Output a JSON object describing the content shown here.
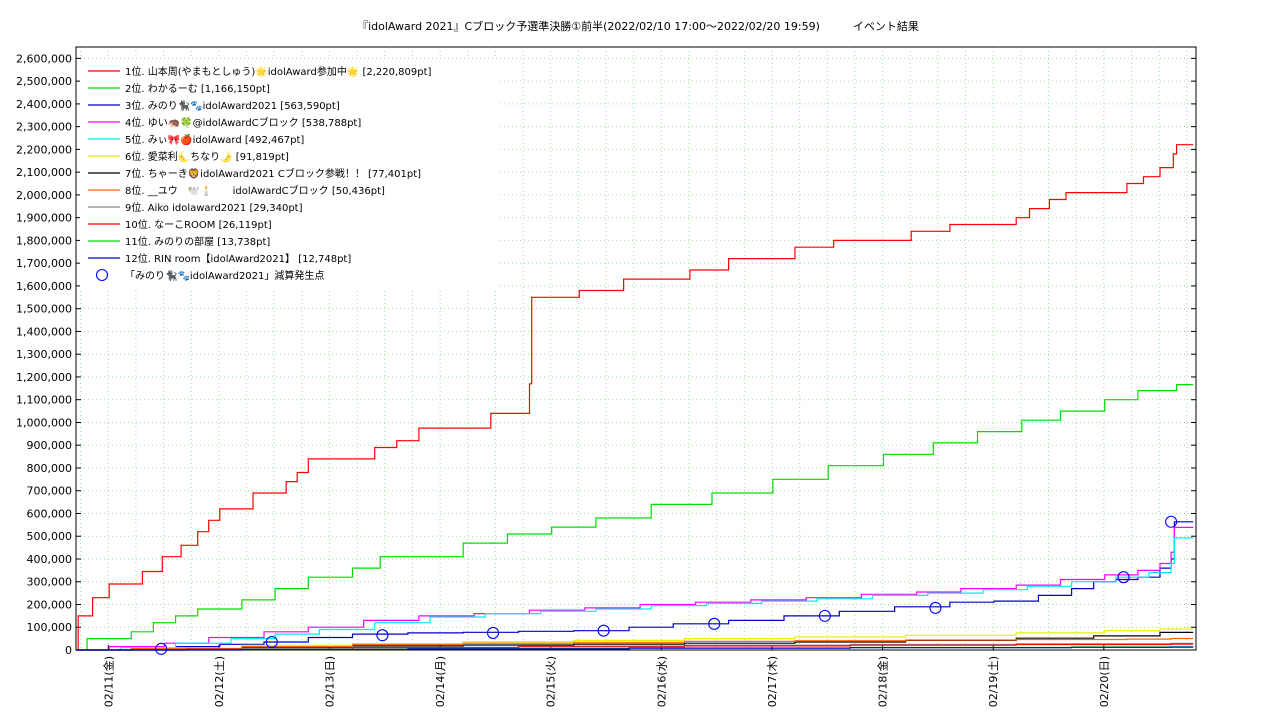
{
  "chart_data": {
    "type": "line",
    "title": "『idolAward 2021』Cブロック予選準決勝①前半(2022/02/10 17:00～2022/02/20 19:59)　　　イベント結果",
    "xlabel": "",
    "ylabel": "",
    "x_unit": "days since 2022/02/10 17:00",
    "xlim": [
      0,
      10.125
    ],
    "ylim": [
      0,
      2650000
    ],
    "y_tick_step": 100000,
    "grid": true,
    "legend_position": "top-left",
    "x_tick_labels": [
      {
        "x": 0.2917,
        "label": "02/11(金)"
      },
      {
        "x": 1.2917,
        "label": "02/12(土)"
      },
      {
        "x": 2.2917,
        "label": "02/13(日)"
      },
      {
        "x": 3.2917,
        "label": "02/14(月)"
      },
      {
        "x": 4.2917,
        "label": "02/15(火)"
      },
      {
        "x": 5.2917,
        "label": "02/16(水)"
      },
      {
        "x": 6.2917,
        "label": "02/17(木)"
      },
      {
        "x": 7.2917,
        "label": "02/18(金)"
      },
      {
        "x": 8.2917,
        "label": "02/19(土)"
      },
      {
        "x": 9.2917,
        "label": "02/20(日)"
      }
    ],
    "series": [
      {
        "name": "1位. 山本周(やまもとしゅう)🌟idolAward参加中🌟 [2,220,809pt]",
        "color": "#ff0000",
        "points": [
          [
            0,
            0
          ],
          [
            0.02,
            150000
          ],
          [
            0.15,
            230000
          ],
          [
            0.3,
            290000
          ],
          [
            0.6,
            345000
          ],
          [
            0.78,
            410000
          ],
          [
            0.95,
            460000
          ],
          [
            1.1,
            520000
          ],
          [
            1.2,
            570000
          ],
          [
            1.3,
            620000
          ],
          [
            1.6,
            690000
          ],
          [
            1.9,
            740000
          ],
          [
            2.0,
            780000
          ],
          [
            2.1,
            840000
          ],
          [
            2.7,
            890000
          ],
          [
            2.9,
            920000
          ],
          [
            3.1,
            975000
          ],
          [
            3.75,
            1040000
          ],
          [
            4.1,
            1170000
          ],
          [
            4.12,
            1550000
          ],
          [
            4.55,
            1580000
          ],
          [
            4.95,
            1630000
          ],
          [
            5.55,
            1670000
          ],
          [
            5.9,
            1720000
          ],
          [
            6.5,
            1770000
          ],
          [
            6.85,
            1800000
          ],
          [
            7.55,
            1840000
          ],
          [
            7.9,
            1870000
          ],
          [
            8.5,
            1900000
          ],
          [
            8.62,
            1940000
          ],
          [
            8.8,
            1980000
          ],
          [
            8.95,
            2010000
          ],
          [
            9.5,
            2050000
          ],
          [
            9.65,
            2080000
          ],
          [
            9.8,
            2120000
          ],
          [
            9.92,
            2180000
          ],
          [
            9.95,
            2220809
          ],
          [
            10.1,
            2220809
          ]
        ]
      },
      {
        "name": "2位. わかるーむ [1,166,150pt]",
        "color": "#00dd00",
        "points": [
          [
            0,
            0
          ],
          [
            0.1,
            50000
          ],
          [
            0.5,
            80000
          ],
          [
            0.7,
            120000
          ],
          [
            0.9,
            150000
          ],
          [
            1.1,
            180000
          ],
          [
            1.5,
            220000
          ],
          [
            1.8,
            270000
          ],
          [
            2.1,
            320000
          ],
          [
            2.5,
            360000
          ],
          [
            2.75,
            410000
          ],
          [
            3.5,
            470000
          ],
          [
            3.9,
            510000
          ],
          [
            4.3,
            540000
          ],
          [
            4.7,
            580000
          ],
          [
            5.2,
            640000
          ],
          [
            5.75,
            690000
          ],
          [
            6.3,
            750000
          ],
          [
            6.8,
            810000
          ],
          [
            7.3,
            860000
          ],
          [
            7.75,
            910000
          ],
          [
            8.15,
            960000
          ],
          [
            8.55,
            1010000
          ],
          [
            8.9,
            1050000
          ],
          [
            9.3,
            1100000
          ],
          [
            9.6,
            1140000
          ],
          [
            9.95,
            1166150
          ],
          [
            10.1,
            1166150
          ]
        ]
      },
      {
        "name": "3位. みのり🐈‍⬛🐾idolAward2021 [563,590pt]",
        "color": "#0000cc",
        "points": [
          [
            0,
            0
          ],
          [
            0.5,
            5000
          ],
          [
            0.9,
            15000
          ],
          [
            1.3,
            25000
          ],
          [
            1.7,
            35000
          ],
          [
            2.1,
            55000
          ],
          [
            2.5,
            70000
          ],
          [
            3.0,
            75000
          ],
          [
            3.5,
            78000
          ],
          [
            4.0,
            82000
          ],
          [
            4.5,
            85000
          ],
          [
            5.0,
            100000
          ],
          [
            5.4,
            115000
          ],
          [
            5.9,
            130000
          ],
          [
            6.4,
            150000
          ],
          [
            6.9,
            170000
          ],
          [
            7.4,
            190000
          ],
          [
            7.9,
            210000
          ],
          [
            8.3,
            215000
          ],
          [
            8.7,
            240000
          ],
          [
            9.0,
            270000
          ],
          [
            9.2,
            300000
          ],
          [
            9.4,
            310000
          ],
          [
            9.6,
            320000
          ],
          [
            9.8,
            360000
          ],
          [
            9.9,
            400000
          ],
          [
            9.93,
            563590
          ],
          [
            10.1,
            563590
          ]
        ]
      },
      {
        "name": "4位. ゆい🦔🍀@idolAwardCブロック [538,788pt]",
        "color": "#ff00ff",
        "points": [
          [
            0,
            0
          ],
          [
            0.3,
            15000
          ],
          [
            0.8,
            30000
          ],
          [
            1.2,
            55000
          ],
          [
            1.7,
            80000
          ],
          [
            2.1,
            100000
          ],
          [
            2.6,
            130000
          ],
          [
            3.1,
            150000
          ],
          [
            3.6,
            160000
          ],
          [
            4.1,
            175000
          ],
          [
            4.6,
            185000
          ],
          [
            5.1,
            200000
          ],
          [
            5.6,
            210000
          ],
          [
            6.1,
            220000
          ],
          [
            6.6,
            230000
          ],
          [
            7.1,
            245000
          ],
          [
            7.6,
            255000
          ],
          [
            8.0,
            270000
          ],
          [
            8.5,
            285000
          ],
          [
            8.9,
            310000
          ],
          [
            9.3,
            330000
          ],
          [
            9.6,
            350000
          ],
          [
            9.8,
            380000
          ],
          [
            9.9,
            430000
          ],
          [
            9.93,
            538788
          ],
          [
            10.1,
            538788
          ]
        ]
      },
      {
        "name": "5位. みぃ🎀🍎idolAward [492,467pt]",
        "color": "#00eeee",
        "points": [
          [
            0,
            0
          ],
          [
            0.4,
            10000
          ],
          [
            0.9,
            30000
          ],
          [
            1.4,
            50000
          ],
          [
            1.8,
            70000
          ],
          [
            2.2,
            90000
          ],
          [
            2.7,
            120000
          ],
          [
            3.2,
            145000
          ],
          [
            3.7,
            160000
          ],
          [
            4.2,
            170000
          ],
          [
            4.7,
            180000
          ],
          [
            5.2,
            195000
          ],
          [
            5.7,
            205000
          ],
          [
            6.2,
            215000
          ],
          [
            6.7,
            225000
          ],
          [
            7.2,
            240000
          ],
          [
            7.7,
            250000
          ],
          [
            8.2,
            265000
          ],
          [
            8.6,
            280000
          ],
          [
            9.0,
            300000
          ],
          [
            9.4,
            320000
          ],
          [
            9.7,
            340000
          ],
          [
            9.9,
            380000
          ],
          [
            9.93,
            492467
          ],
          [
            10.1,
            492467
          ]
        ]
      },
      {
        "name": "6位. 愛菜利🌜ちなり🌛 [91,819pt]",
        "color": "#eeee00",
        "points": [
          [
            0,
            0
          ],
          [
            0.5,
            8000
          ],
          [
            1.5,
            20000
          ],
          [
            2.5,
            28000
          ],
          [
            3.5,
            36000
          ],
          [
            4.5,
            42000
          ],
          [
            5.5,
            50000
          ],
          [
            6.5,
            57000
          ],
          [
            7.5,
            65000
          ],
          [
            8.5,
            75000
          ],
          [
            9.3,
            85000
          ],
          [
            9.8,
            91819
          ],
          [
            10.1,
            91819
          ]
        ]
      },
      {
        "name": "7位. ちゃーき🦁idolAward2021 Cブロック参戦！！ [77,401pt]",
        "color": "#000000",
        "points": [
          [
            0,
            0
          ],
          [
            0.5,
            5000
          ],
          [
            1.5,
            12000
          ],
          [
            2.5,
            18000
          ],
          [
            3.5,
            22000
          ],
          [
            4.5,
            26000
          ],
          [
            5.5,
            30000
          ],
          [
            6.5,
            35000
          ],
          [
            7.5,
            42000
          ],
          [
            8.5,
            52000
          ],
          [
            9.2,
            62000
          ],
          [
            9.8,
            77401
          ],
          [
            10.1,
            77401
          ]
        ]
      },
      {
        "name": "8位. __ユウ　🕊️🕯️　　idolAwardCブロック [50,436pt]",
        "color": "#ff6600",
        "points": [
          [
            0,
            0
          ],
          [
            0.5,
            6000
          ],
          [
            1.5,
            15000
          ],
          [
            2.5,
            24000
          ],
          [
            3.5,
            30000
          ],
          [
            4.5,
            34000
          ],
          [
            5.5,
            38000
          ],
          [
            6.5,
            41000
          ],
          [
            7.5,
            44000
          ],
          [
            8.5,
            46000
          ],
          [
            9.5,
            48000
          ],
          [
            9.9,
            50436
          ],
          [
            10.1,
            50436
          ]
        ]
      },
      {
        "name": "9位. Aiko idolaward2021 [29,340pt]",
        "color": "#888888",
        "points": [
          [
            0,
            0
          ],
          [
            1.0,
            5000
          ],
          [
            2.5,
            12000
          ],
          [
            4.0,
            17000
          ],
          [
            5.5,
            21000
          ],
          [
            7.0,
            24000
          ],
          [
            8.5,
            27000
          ],
          [
            9.9,
            29340
          ],
          [
            10.1,
            29340
          ]
        ]
      },
      {
        "name": "10位. なーこROOM [26,119pt]",
        "color": "#ff0000",
        "points": [
          [
            0,
            0
          ],
          [
            1.0,
            4000
          ],
          [
            2.5,
            10000
          ],
          [
            4.0,
            14000
          ],
          [
            5.5,
            18000
          ],
          [
            7.0,
            21000
          ],
          [
            8.5,
            24000
          ],
          [
            9.9,
            26119
          ],
          [
            10.1,
            26119
          ]
        ]
      },
      {
        "name": "11位. みのりの部屋 [13,738pt]",
        "color": "#00dd00",
        "points": [
          [
            0,
            0
          ],
          [
            1.5,
            3000
          ],
          [
            3.0,
            6000
          ],
          [
            5.0,
            9000
          ],
          [
            7.0,
            11000
          ],
          [
            9.0,
            13000
          ],
          [
            9.9,
            13738
          ],
          [
            10.1,
            13738
          ]
        ]
      },
      {
        "name": "12位. RIN room【idolAward2021】 [12,748pt]",
        "color": "#0000cc",
        "points": [
          [
            0,
            0
          ],
          [
            1.5,
            3000
          ],
          [
            3.0,
            5000
          ],
          [
            5.0,
            8000
          ],
          [
            7.0,
            10000
          ],
          [
            9.0,
            12000
          ],
          [
            9.9,
            12748
          ],
          [
            10.1,
            12748
          ]
        ]
      }
    ],
    "markers": {
      "name": "「みのり🐈‍⬛🐾idolAward2021」減算発生点",
      "color": "#0000ff",
      "points": [
        [
          0.77,
          5000
        ],
        [
          1.77,
          35000
        ],
        [
          2.77,
          65000
        ],
        [
          3.77,
          75000
        ],
        [
          4.77,
          85000
        ],
        [
          5.77,
          115000
        ],
        [
          6.77,
          150000
        ],
        [
          7.77,
          185000
        ],
        [
          9.47,
          320000
        ],
        [
          9.9,
          563590
        ]
      ]
    }
  }
}
